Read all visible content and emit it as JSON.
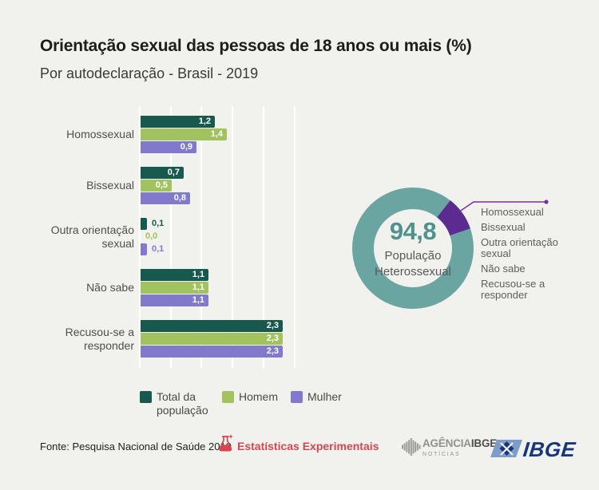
{
  "header": {
    "title": "Orientação sexual das pessoas de 18 anos ou mais (%)",
    "subtitle": "Por autodeclaração - Brasil - 2019"
  },
  "chart_data": [
    {
      "type": "bar",
      "orientation": "horizontal",
      "categories": [
        "Homossexual",
        "Bissexual",
        "Outra orientação sexual",
        "Não sabe",
        "Recusou-se a responder"
      ],
      "series": [
        {
          "name": "Total da população",
          "color": "#17594e",
          "values": [
            1.2,
            0.7,
            0.1,
            1.1,
            2.3
          ]
        },
        {
          "name": "Homem",
          "color": "#a2c25e",
          "values": [
            1.4,
            0.5,
            0.0,
            1.1,
            2.3
          ]
        },
        {
          "name": "Mulher",
          "color": "#8179cb",
          "values": [
            0.9,
            0.8,
            0.1,
            1.1,
            2.3
          ]
        }
      ],
      "xlim": [
        0,
        2.5
      ],
      "grid_step": 0.5,
      "grid": true,
      "decimal_separator": "comma",
      "legend_position": "bottom"
    },
    {
      "type": "pie",
      "style": "donut",
      "center_value": "94,8",
      "center_label": "População Heterossexual",
      "slices": [
        {
          "label": "População Heterossexual",
          "value": 94.8,
          "color": "#6ba5a1"
        },
        {
          "label": "Homossexual, Bissexual, Outra orientação sexual, Não sabe, Recusou-se a responder",
          "value": 5.2,
          "color": "#5c2b92"
        }
      ],
      "callout_labels": [
        "Homossexual",
        "Bissexual",
        "Outra orientação sexual",
        "Não sabe",
        "Recusou-se a responder"
      ]
    }
  ],
  "footer": {
    "source": "Fonte: Pesquisa Nacional de Saúde 2019",
    "experimental_label": "Estatísticas Experimentais",
    "agencia_name": "AGÊNCIA",
    "agencia_ibge": "IBGE",
    "agencia_sub": "NOTÍCIAS",
    "ibge_logo_text": "IBGE"
  },
  "colors": {
    "background": "#f1f1ee",
    "grid": "#ffffff",
    "accent_red": "#d5464f",
    "ibge_navy": "#16357d",
    "ibge_light_blue": "#7d9cc9",
    "donut_teal": "#6ba5a1",
    "donut_purple": "#5c2b92",
    "callout_line": "#7b2f9e",
    "center_value_color": "#4d928c"
  }
}
